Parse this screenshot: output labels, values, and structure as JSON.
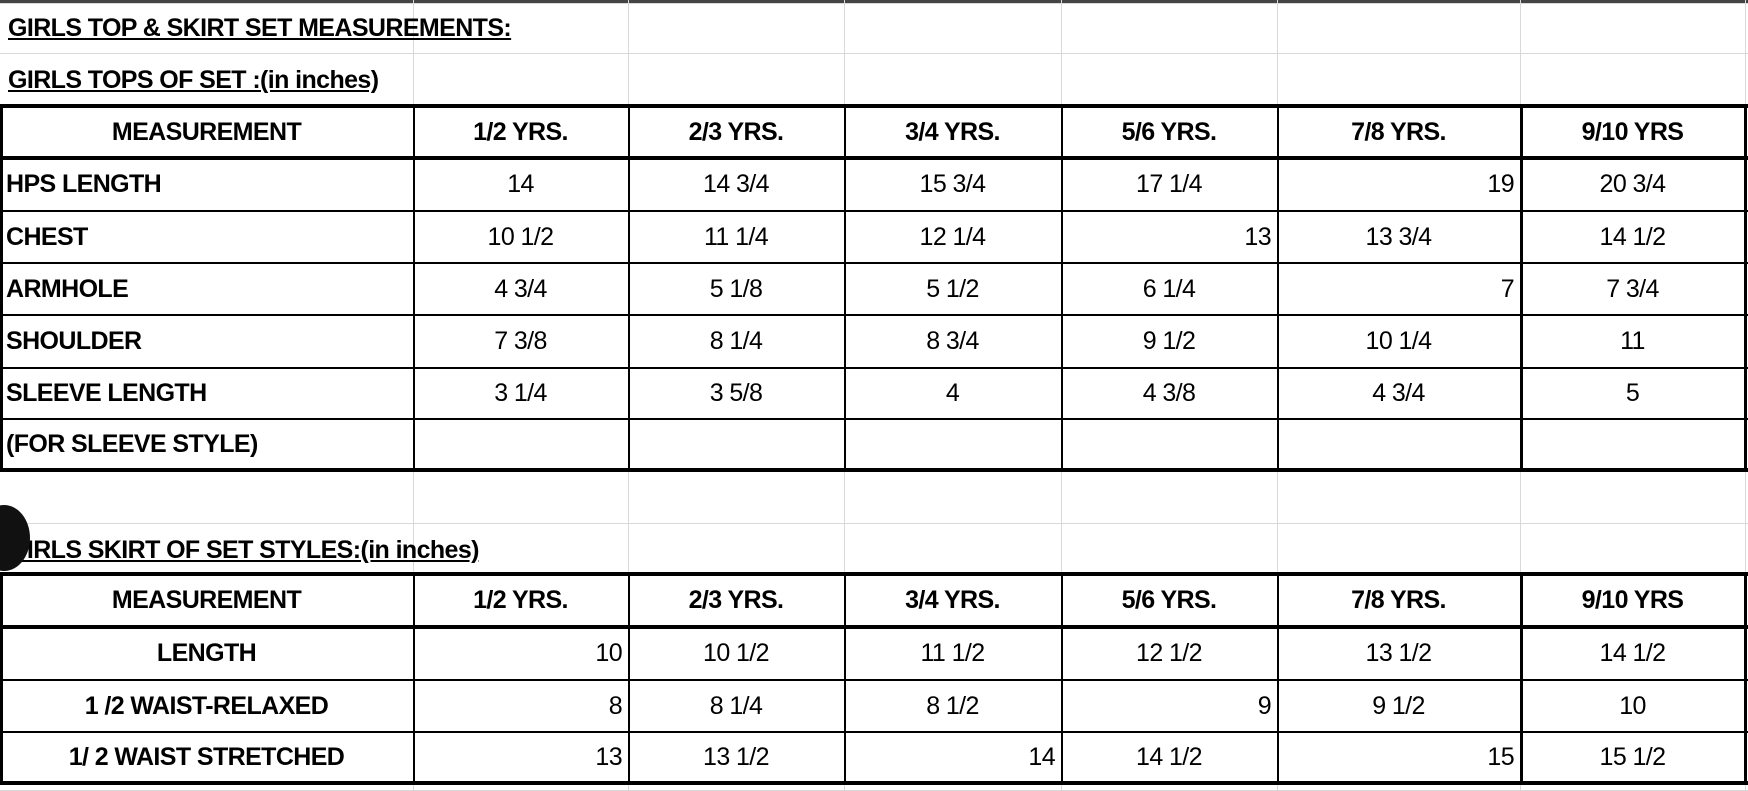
{
  "title": "GIRLS TOP & SKIRT SET MEASUREMENTS:",
  "tops": {
    "title": "GIRLS TOPS  OF SET :(in inches)",
    "headers": [
      "MEASUREMENT",
      "1/2 YRS.",
      "2/3 YRS.",
      "3/4 YRS.",
      "5/6 YRS.",
      "7/8 YRS.",
      "9/10 YRS"
    ],
    "rows": [
      [
        "HPS LENGTH",
        "14",
        "14 3/4",
        "15 3/4",
        "17 1/4",
        "19",
        "20 3/4"
      ],
      [
        "CHEST",
        "10 1/2",
        "11 1/4",
        "12 1/4",
        "13",
        "13 3/4",
        "14 1/2"
      ],
      [
        "ARMHOLE",
        "4 3/4",
        "5 1/8",
        "5 1/2",
        "6 1/4",
        "7",
        "7 3/4"
      ],
      [
        "SHOULDER",
        "7 3/8",
        "8 1/4",
        "8 3/4",
        "9 1/2",
        "10 1/4",
        "11"
      ],
      [
        "SLEEVE LENGTH",
        "3 1/4",
        "3 5/8",
        "4",
        "4 3/8",
        "4 3/4",
        "5"
      ],
      [
        "(FOR SLEEVE STYLE)",
        "",
        "",
        "",
        "",
        "",
        ""
      ]
    ]
  },
  "skirt": {
    "title": "GIRLS SKIRT OF SET STYLES:(in inches)",
    "headers": [
      "MEASUREMENT",
      "1/2 YRS.",
      "2/3 YRS.",
      "3/4 YRS.",
      "5/6 YRS.",
      "7/8 YRS.",
      "9/10 YRS"
    ],
    "rows": [
      [
        "LENGTH",
        "10",
        "10 1/2",
        "11 1/2",
        "12 1/2",
        "13 1/2",
        "14 1/2"
      ],
      [
        "1 /2 WAIST-RELAXED",
        "8",
        "8 1/4",
        "8 1/2",
        "9",
        "9 1/2",
        "10"
      ],
      [
        "1/ 2 WAIST STRETCHED",
        "13",
        "13 1/2",
        "14",
        "14 1/2",
        "15",
        "15 1/2"
      ]
    ]
  }
}
